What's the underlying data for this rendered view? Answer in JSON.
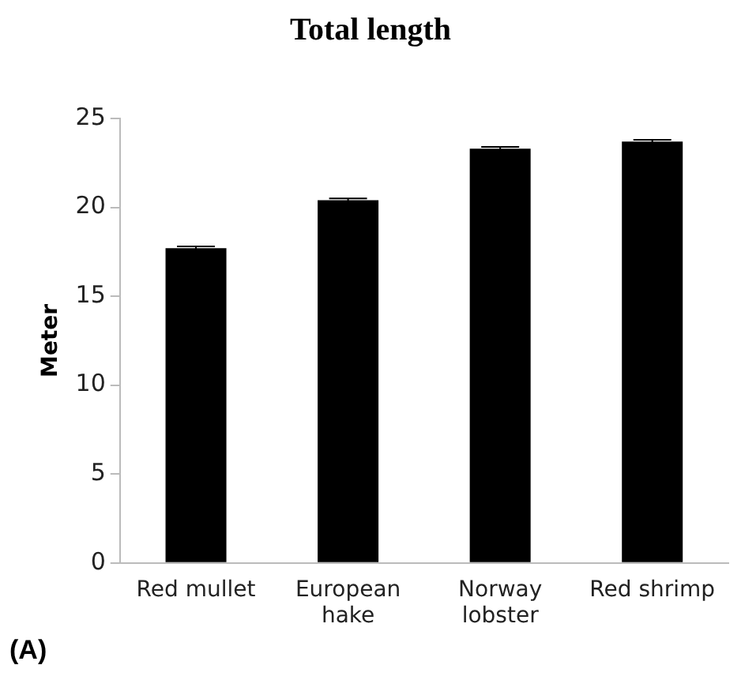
{
  "chart_data": {
    "type": "bar",
    "title": "Total length",
    "ylabel": "Meter",
    "categories": [
      "Red mullet",
      "European hake",
      "Norway lobster",
      "Red shrimp"
    ],
    "values": [
      17.7,
      20.4,
      23.3,
      23.7
    ],
    "errors": [
      0.1,
      0.1,
      0.1,
      0.1
    ],
    "color": "#000000",
    "ylim": [
      0,
      25
    ],
    "yticks": [
      0,
      5,
      10,
      15,
      20,
      25
    ],
    "grid": false,
    "legend": false,
    "annotations": [
      "(A)"
    ]
  }
}
